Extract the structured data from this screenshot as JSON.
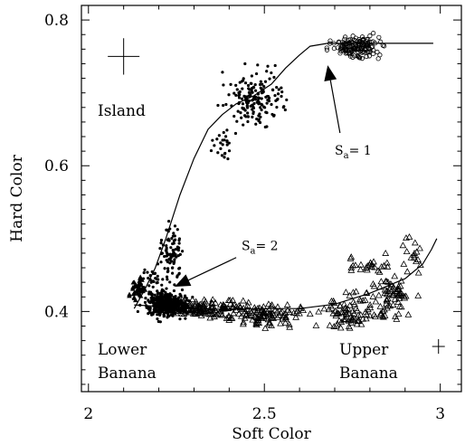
{
  "chart_data": {
    "type": "scatter",
    "xlabel": "Soft Color",
    "ylabel": "Hard Color",
    "xlim": [
      1.98,
      3.06
    ],
    "ylim": [
      0.29,
      0.82
    ],
    "x_ticks": [
      {
        "value": 2,
        "label": "2"
      },
      {
        "value": 2.5,
        "label": "2.5"
      },
      {
        "value": 3,
        "label": "3"
      }
    ],
    "y_ticks": [
      {
        "value": 0.4,
        "label": "0.4"
      },
      {
        "value": 0.6,
        "label": "0.6"
      },
      {
        "value": 0.8,
        "label": "0.8"
      }
    ],
    "region_labels": [
      {
        "text": "Island",
        "x": 2.0,
        "y": 0.75
      },
      {
        "text": "Lower",
        "x": 2.0,
        "y": 0.365
      },
      {
        "text": "Banana",
        "x": 2.0,
        "y": 0.335
      },
      {
        "text": "Upper",
        "x": 2.7,
        "y": 0.365
      },
      {
        "text": "Banana",
        "x": 2.7,
        "y": 0.335
      }
    ],
    "annotations": [
      {
        "main": "S",
        "sub": "a",
        "rest": "= 1",
        "text_x": 2.7,
        "text_y": 0.615,
        "tail_x": 2.715,
        "tail_y": 0.645,
        "head_x": 2.68,
        "head_y": 0.738
      },
      {
        "main": "S",
        "sub": "a",
        "rest": "= 2",
        "text_x": 2.435,
        "text_y": 0.484,
        "tail_x": 2.42,
        "tail_y": 0.474,
        "head_x": 2.245,
        "head_y": 0.434
      }
    ],
    "error_bars": [
      {
        "name": "island-error",
        "x": 2.1,
        "y": 0.75,
        "dx": 0.045,
        "dy": 0.025
      },
      {
        "name": "banana-error",
        "x": 2.995,
        "y": 0.352,
        "dx": 0.018,
        "dy": 0.01
      }
    ],
    "track": {
      "name": "S_a track",
      "points": [
        [
          2.13,
          0.404
        ],
        [
          2.16,
          0.43
        ],
        [
          2.19,
          0.46
        ],
        [
          2.22,
          0.5
        ],
        [
          2.26,
          0.56
        ],
        [
          2.3,
          0.61
        ],
        [
          2.34,
          0.65
        ],
        [
          2.38,
          0.67
        ],
        [
          2.42,
          0.685
        ],
        [
          2.47,
          0.696
        ],
        [
          2.52,
          0.712
        ],
        [
          2.56,
          0.734
        ],
        [
          2.6,
          0.752
        ],
        [
          2.63,
          0.764
        ],
        [
          2.68,
          0.768
        ],
        [
          2.8,
          0.768
        ],
        [
          2.98,
          0.768
        ]
      ]
    },
    "track_lower": {
      "name": "banana track",
      "points": [
        [
          2.13,
          0.409
        ],
        [
          2.2,
          0.407
        ],
        [
          2.3,
          0.404
        ],
        [
          2.4,
          0.403
        ],
        [
          2.5,
          0.404
        ],
        [
          2.6,
          0.404
        ],
        [
          2.7,
          0.41
        ],
        [
          2.8,
          0.425
        ],
        [
          2.9,
          0.445
        ],
        [
          2.95,
          0.465
        ],
        [
          2.975,
          0.485
        ],
        [
          2.99,
          0.5
        ]
      ]
    },
    "series": [
      {
        "name": "filled-dots",
        "marker": "dot",
        "clusters": [
          {
            "cx": 2.22,
            "cy": 0.41,
            "sx": 0.045,
            "sy": 0.014,
            "n": 420
          },
          {
            "cx": 2.235,
            "cy": 0.48,
            "sx": 0.025,
            "sy": 0.03,
            "n": 90
          },
          {
            "cx": 2.47,
            "cy": 0.69,
            "sx": 0.07,
            "sy": 0.035,
            "n": 170
          },
          {
            "cx": 2.38,
            "cy": 0.63,
            "sx": 0.03,
            "sy": 0.02,
            "n": 25
          },
          {
            "cx": 2.18,
            "cy": 0.445,
            "sx": 0.025,
            "sy": 0.015,
            "n": 30
          }
        ]
      },
      {
        "name": "open-circles",
        "marker": "circle",
        "clusters": [
          {
            "cx": 2.76,
            "cy": 0.763,
            "sx": 0.055,
            "sy": 0.013,
            "n": 150
          }
        ]
      },
      {
        "name": "open-triangles",
        "marker": "triangle",
        "clusters": [
          {
            "cx": 2.32,
            "cy": 0.405,
            "sx": 0.09,
            "sy": 0.01,
            "n": 140
          },
          {
            "cx": 2.5,
            "cy": 0.397,
            "sx": 0.09,
            "sy": 0.013,
            "n": 110
          },
          {
            "cx": 2.73,
            "cy": 0.4,
            "sx": 0.06,
            "sy": 0.018,
            "n": 70
          },
          {
            "cx": 2.86,
            "cy": 0.42,
            "sx": 0.06,
            "sy": 0.03,
            "n": 80
          },
          {
            "cx": 2.8,
            "cy": 0.465,
            "sx": 0.05,
            "sy": 0.015,
            "n": 25
          },
          {
            "cx": 2.93,
            "cy": 0.48,
            "sx": 0.03,
            "sy": 0.02,
            "n": 15
          }
        ]
      },
      {
        "name": "filled-triangles",
        "marker": "filled-triangle",
        "clusters": [
          {
            "cx": 2.14,
            "cy": 0.43,
            "sx": 0.02,
            "sy": 0.015,
            "n": 40
          }
        ]
      }
    ],
    "grid": false,
    "legend": "none"
  }
}
